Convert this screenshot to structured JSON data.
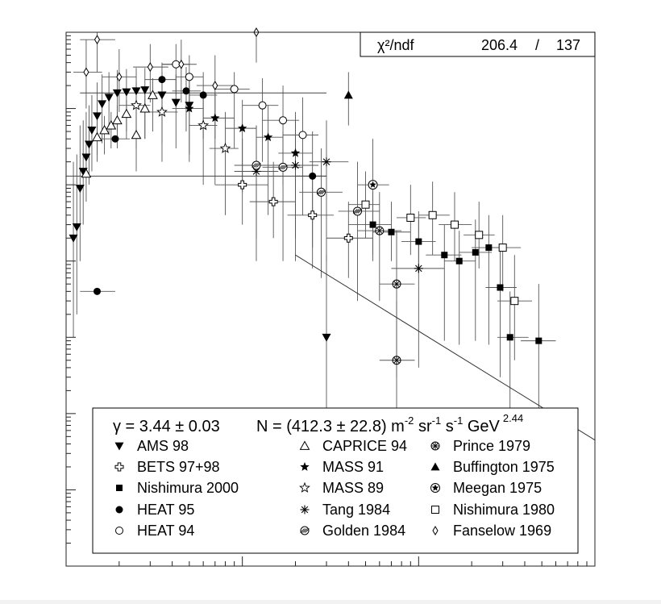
{
  "chart_data": {
    "type": "scatter",
    "x_scale": "log",
    "y_scale": "log",
    "x_range": [
      1,
      1000
    ],
    "y_range": [
      0.001,
      10000
    ],
    "tick_labels_visible": false,
    "stats_box": {
      "label": "χ²/ndf",
      "chi2": "206.4",
      "separator": "/",
      "ndf": "137"
    },
    "fit": {
      "gamma_text": "γ = 3.44 ± 0.03",
      "norm_text": "N = (412.3 ± 22.8) m",
      "norm_units": [
        "-2",
        " sr",
        "-1",
        " s",
        "-1",
        " GeV",
        "2.44"
      ],
      "gamma": 3.44,
      "gamma_err": 0.03,
      "N": 412.3,
      "N_err": 22.8
    },
    "legend": [
      {
        "name": "AMS 98",
        "marker": "triangle-down-filled"
      },
      {
        "name": "BETS 97+98",
        "marker": "open-cross"
      },
      {
        "name": "Nishimura 2000",
        "marker": "square-filled"
      },
      {
        "name": "HEAT 95",
        "marker": "circle-filled"
      },
      {
        "name": "HEAT 94",
        "marker": "circle-open"
      },
      {
        "name": "CAPRICE 94",
        "marker": "triangle-up-open"
      },
      {
        "name": "MASS 91",
        "marker": "star-filled"
      },
      {
        "name": "MASS 89",
        "marker": "star-open"
      },
      {
        "name": "Tang 1984",
        "marker": "asterisk"
      },
      {
        "name": "Golden 1984",
        "marker": "circle-hatched"
      },
      {
        "name": "Prince 1979",
        "marker": "circle-cross"
      },
      {
        "name": "Buffington 1975",
        "marker": "triangle-up-filled"
      },
      {
        "name": "Meegan 1975",
        "marker": "circle-star"
      },
      {
        "name": "Nishimura 1980",
        "marker": "square-open"
      },
      {
        "name": "Fanselow 1969",
        "marker": "diamond-open"
      }
    ],
    "series": [
      {
        "name": "AMS 98",
        "marker": "triangle-down-filled",
        "points": [
          {
            "x": 1.1,
            "y": 20,
            "xlo": 1.1,
            "xhi": 1.1,
            "ylo": 1,
            "yhi": 200
          },
          {
            "x": 1.15,
            "y": 28,
            "xlo": 1.15,
            "xhi": 1.15,
            "ylo": 2,
            "yhi": 250
          },
          {
            "x": 1.2,
            "y": 90,
            "xlo": 1.2,
            "xhi": 1.2,
            "ylo": 10,
            "yhi": 600
          },
          {
            "x": 1.25,
            "y": 150,
            "xlo": 1.25,
            "xhi": 1.25,
            "ylo": 30,
            "yhi": 700
          },
          {
            "x": 1.3,
            "y": 230,
            "xlo": 1.3,
            "xhi": 1.3,
            "ylo": 60,
            "yhi": 900
          },
          {
            "x": 1.35,
            "y": 340,
            "xlo": 1.35,
            "xhi": 1.35,
            "ylo": 100,
            "yhi": 1100
          },
          {
            "x": 1.4,
            "y": 520,
            "xlo": 1.4,
            "xhi": 1.4,
            "ylo": 150,
            "yhi": 1500
          },
          {
            "x": 1.5,
            "y": 800,
            "xlo": 1.5,
            "xhi": 1.5,
            "ylo": 250,
            "yhi": 2200
          },
          {
            "x": 1.6,
            "y": 1150,
            "xlo": 1.6,
            "xhi": 1.6,
            "ylo": 350,
            "yhi": 2800
          },
          {
            "x": 1.75,
            "y": 1400,
            "xlo": 1.75,
            "xhi": 1.75,
            "ylo": 450,
            "yhi": 3000
          },
          {
            "x": 1.95,
            "y": 1600,
            "xlo": 1.95,
            "xhi": 1.95,
            "ylo": 500,
            "yhi": 3200
          },
          {
            "x": 2.2,
            "y": 1650,
            "xlo": 2.2,
            "xhi": 2.2,
            "ylo": 500,
            "yhi": 3300
          },
          {
            "x": 2.5,
            "y": 1700,
            "xlo": 2.5,
            "xhi": 2.5,
            "ylo": 500,
            "yhi": 3400
          },
          {
            "x": 2.8,
            "y": 1750,
            "xlo": 2.8,
            "xhi": 2.8,
            "ylo": 400,
            "yhi": 3400
          },
          {
            "x": 3.5,
            "y": 1500,
            "xlo": 3.5,
            "xhi": 3.5,
            "ylo": 350,
            "yhi": 3000
          },
          {
            "x": 4.2,
            "y": 1200,
            "xlo": 4.2,
            "xhi": 4.2,
            "ylo": 300,
            "yhi": 2800
          },
          {
            "x": 5,
            "y": 1100,
            "xlo": 5,
            "xhi": 5,
            "ylo": 250,
            "yhi": 2500
          },
          {
            "x": 30,
            "y": 1,
            "xlo": 30,
            "xhi": 30,
            "ylo": 0.02,
            "yhi": 12
          }
        ]
      },
      {
        "name": "BETS 97+98",
        "marker": "open-cross",
        "points": [
          {
            "x": 10,
            "y": 100,
            "xlo": 7,
            "xhi": 14,
            "ylo": 30,
            "yhi": 400
          },
          {
            "x": 15,
            "y": 60,
            "xlo": 11,
            "xhi": 20,
            "ylo": 20,
            "yhi": 200
          },
          {
            "x": 25,
            "y": 40,
            "xlo": 18,
            "xhi": 33,
            "ylo": 15,
            "yhi": 120
          },
          {
            "x": 40,
            "y": 20,
            "xlo": 30,
            "xhi": 55,
            "ylo": 6,
            "yhi": 60
          }
        ]
      },
      {
        "name": "Nishimura 2000",
        "marker": "square-filled",
        "points": [
          {
            "x": 55,
            "y": 30,
            "xlo": 40,
            "xhi": 70,
            "ylo": 12,
            "yhi": 80
          },
          {
            "x": 70,
            "y": 24,
            "xlo": 55,
            "xhi": 90,
            "ylo": 10,
            "yhi": 60
          },
          {
            "x": 100,
            "y": 18,
            "xlo": 80,
            "xhi": 125,
            "ylo": 7,
            "yhi": 45
          },
          {
            "x": 140,
            "y": 12,
            "xlo": 110,
            "xhi": 175,
            "ylo": 0.9,
            "yhi": 30
          },
          {
            "x": 170,
            "y": 10,
            "xlo": 140,
            "xhi": 210,
            "ylo": 0.8,
            "yhi": 25
          },
          {
            "x": 210,
            "y": 13,
            "xlo": 170,
            "xhi": 260,
            "ylo": 0.9,
            "yhi": 35
          },
          {
            "x": 250,
            "y": 15,
            "xlo": 200,
            "xhi": 310,
            "ylo": 0.8,
            "yhi": 40
          },
          {
            "x": 290,
            "y": 4.5,
            "xlo": 240,
            "xhi": 360,
            "ylo": 0.3,
            "yhi": 15
          },
          {
            "x": 330,
            "y": 1,
            "xlo": 280,
            "xhi": 420,
            "ylo": 0.05,
            "yhi": 4
          },
          {
            "x": 480,
            "y": 0.9,
            "xlo": 380,
            "xhi": 600,
            "ylo": 0.01,
            "yhi": 5
          }
        ]
      },
      {
        "name": "HEAT 95",
        "marker": "circle-filled",
        "points": [
          {
            "x": 1.5,
            "y": 4,
            "xlo": 1.2,
            "xhi": 1.9,
            "ylo": 4,
            "yhi": 4
          },
          {
            "x": 1.9,
            "y": 400,
            "xlo": 1.5,
            "xhi": 2.3,
            "ylo": 400,
            "yhi": 400
          },
          {
            "x": 3.5,
            "y": 2400,
            "xlo": 2.8,
            "xhi": 4.2,
            "ylo": 800,
            "yhi": 4000
          },
          {
            "x": 4.8,
            "y": 1700,
            "xlo": 4,
            "xhi": 5.8,
            "ylo": 500,
            "yhi": 3500
          },
          {
            "x": 6,
            "y": 1500,
            "xlo": 5,
            "xhi": 7.2,
            "ylo": 400,
            "yhi": 3000
          },
          {
            "x": 25,
            "y": 130,
            "xlo": 20,
            "xhi": 30,
            "ylo": 8,
            "yhi": 500
          }
        ]
      },
      {
        "name": "HEAT 94",
        "marker": "circle-open",
        "points": [
          {
            "x": 4.2,
            "y": 3800,
            "xlo": 3.5,
            "xhi": 5,
            "ylo": 1500,
            "yhi": 7000
          },
          {
            "x": 5,
            "y": 2600,
            "xlo": 4.2,
            "xhi": 6,
            "ylo": 900,
            "yhi": 5000
          },
          {
            "x": 9,
            "y": 1800,
            "xlo": 7,
            "xhi": 11,
            "ylo": 300,
            "yhi": 3000
          },
          {
            "x": 13,
            "y": 1100,
            "xlo": 10,
            "xhi": 16,
            "ylo": 200,
            "yhi": 2500
          },
          {
            "x": 17,
            "y": 700,
            "xlo": 13,
            "xhi": 21,
            "ylo": 100,
            "yhi": 2000
          },
          {
            "x": 22,
            "y": 450,
            "xlo": 17,
            "xhi": 27,
            "ylo": 40,
            "yhi": 1400
          }
        ]
      },
      {
        "name": "CAPRICE 94",
        "marker": "triangle-up-open",
        "points": [
          {
            "x": 1.3,
            "y": 140,
            "xlo": 1.3,
            "xhi": 1.3,
            "ylo": 140,
            "yhi": 140
          },
          {
            "x": 1.5,
            "y": 420,
            "xlo": 1.5,
            "xhi": 1.5,
            "ylo": 200,
            "yhi": 700
          },
          {
            "x": 1.65,
            "y": 520,
            "xlo": 1.65,
            "xhi": 1.65,
            "ylo": 250,
            "yhi": 800
          },
          {
            "x": 1.8,
            "y": 600,
            "xlo": 1.8,
            "xhi": 1.8,
            "ylo": 300,
            "yhi": 900
          },
          {
            "x": 1.95,
            "y": 700,
            "xlo": 1.95,
            "xhi": 1.95,
            "ylo": 300,
            "yhi": 1100
          },
          {
            "x": 2.2,
            "y": 850,
            "xlo": 2.2,
            "xhi": 2.2,
            "ylo": 400,
            "yhi": 1300
          },
          {
            "x": 2.5,
            "y": 450,
            "xlo": 2.5,
            "xhi": 2.5,
            "ylo": 150,
            "yhi": 900
          },
          {
            "x": 2.8,
            "y": 1000,
            "xlo": 2.8,
            "xhi": 2.8,
            "ylo": 400,
            "yhi": 1700
          },
          {
            "x": 3.1,
            "y": 1500,
            "xlo": 3.1,
            "xhi": 3.1,
            "ylo": 500,
            "yhi": 2500
          }
        ]
      },
      {
        "name": "MASS 91",
        "marker": "star-filled",
        "points": [
          {
            "x": 5,
            "y": 1000,
            "xlo": 4,
            "xhi": 6,
            "ylo": 200,
            "yhi": 2000
          },
          {
            "x": 7,
            "y": 750,
            "xlo": 6,
            "xhi": 9,
            "ylo": 100,
            "yhi": 1600
          },
          {
            "x": 10,
            "y": 550,
            "xlo": 8,
            "xhi": 12,
            "ylo": 80,
            "yhi": 1300
          },
          {
            "x": 14,
            "y": 420,
            "xlo": 12,
            "xhi": 17,
            "ylo": 40,
            "yhi": 1100
          },
          {
            "x": 20,
            "y": 260,
            "xlo": 16,
            "xhi": 25,
            "ylo": 20,
            "yhi": 900
          }
        ]
      },
      {
        "name": "MASS 89",
        "marker": "star-open",
        "points": [
          {
            "x": 2.5,
            "y": 1100,
            "xlo": 2,
            "xhi": 3,
            "ylo": 300,
            "yhi": 2200
          },
          {
            "x": 3.5,
            "y": 900,
            "xlo": 2.8,
            "xhi": 4.3,
            "ylo": 200,
            "yhi": 2000
          },
          {
            "x": 6,
            "y": 600,
            "xlo": 5,
            "xhi": 7.2,
            "ylo": 100,
            "yhi": 1500
          },
          {
            "x": 8,
            "y": 300,
            "xlo": 6.5,
            "xhi": 9.5,
            "ylo": 40,
            "yhi": 900
          }
        ]
      },
      {
        "name": "Tang 1984",
        "marker": "asterisk",
        "points": [
          {
            "x": 12,
            "y": 150,
            "xlo": 9,
            "xhi": 16,
            "ylo": 10,
            "yhi": 600
          },
          {
            "x": 20,
            "y": 180,
            "xlo": 15,
            "xhi": 27,
            "ylo": 10,
            "yhi": 700
          },
          {
            "x": 30,
            "y": 200,
            "xlo": 24,
            "xhi": 40,
            "ylo": 10,
            "yhi": 700
          },
          {
            "x": 100,
            "y": 8,
            "xlo": 70,
            "xhi": 140,
            "ylo": 0.4,
            "yhi": 35
          }
        ]
      },
      {
        "name": "Golden 1984",
        "marker": "circle-hatched",
        "points": [
          {
            "x": 12,
            "y": 180,
            "xlo": 9,
            "xhi": 16,
            "ylo": 20,
            "yhi": 600
          },
          {
            "x": 17,
            "y": 170,
            "xlo": 13,
            "xhi": 22,
            "ylo": 10,
            "yhi": 500
          },
          {
            "x": 28,
            "y": 80,
            "xlo": 21,
            "xhi": 37,
            "ylo": 6,
            "yhi": 300
          },
          {
            "x": 45,
            "y": 45,
            "xlo": 35,
            "xhi": 60,
            "ylo": 3,
            "yhi": 200
          }
        ]
      },
      {
        "name": "Prince 1979",
        "marker": "circle-cross",
        "points": [
          {
            "x": 75,
            "y": 5,
            "xlo": 60,
            "xhi": 95,
            "ylo": 0.3,
            "yhi": 25
          },
          {
            "x": 75,
            "y": 0.5,
            "xlo": 60,
            "xhi": 95,
            "ylo": 0.02,
            "yhi": 3
          },
          {
            "x": 60,
            "y": 25,
            "xlo": 45,
            "xhi": 80,
            "ylo": 3,
            "yhi": 80
          }
        ]
      },
      {
        "name": "Buffington 1975",
        "marker": "triangle-up-filled",
        "points": [
          {
            "x": 40,
            "y": 1500,
            "xlo": 40,
            "xhi": 40,
            "ylo": 600,
            "yhi": 3000
          }
        ]
      },
      {
        "name": "Meegan 1975",
        "marker": "circle-star",
        "points": [
          {
            "x": 55,
            "y": 100,
            "xlo": 45,
            "xhi": 68,
            "ylo": 10,
            "yhi": 400
          }
        ]
      },
      {
        "name": "Nishimura 1980",
        "marker": "square-open",
        "points": [
          {
            "x": 50,
            "y": 55,
            "xlo": 40,
            "xhi": 60,
            "ylo": 20,
            "yhi": 150
          },
          {
            "x": 90,
            "y": 37,
            "xlo": 75,
            "xhi": 110,
            "ylo": 12,
            "yhi": 100
          },
          {
            "x": 120,
            "y": 40,
            "xlo": 100,
            "xhi": 150,
            "ylo": 12,
            "yhi": 110
          },
          {
            "x": 160,
            "y": 30,
            "xlo": 130,
            "xhi": 200,
            "ylo": 10,
            "yhi": 80
          },
          {
            "x": 220,
            "y": 22,
            "xlo": 180,
            "xhi": 270,
            "ylo": 8,
            "yhi": 60
          },
          {
            "x": 300,
            "y": 15,
            "xlo": 240,
            "xhi": 380,
            "ylo": 4,
            "yhi": 40
          },
          {
            "x": 350,
            "y": 3,
            "xlo": 280,
            "xhi": 440,
            "ylo": 0.5,
            "yhi": 12
          }
        ]
      },
      {
        "name": "Fanselow 1969",
        "marker": "diamond-open",
        "points": [
          {
            "x": 1.5,
            "y": 8000,
            "xlo": 1.2,
            "xhi": 1.9,
            "ylo": 3000,
            "yhi": 15000
          },
          {
            "x": 1.3,
            "y": 3000,
            "xlo": 1.1,
            "xhi": 1.6,
            "ylo": 1000,
            "yhi": 8000
          },
          {
            "x": 2,
            "y": 2600,
            "xlo": 1.6,
            "xhi": 2.5,
            "ylo": 900,
            "yhi": 6000
          },
          {
            "x": 3,
            "y": 3500,
            "xlo": 2.4,
            "xhi": 3.8,
            "ylo": 1200,
            "yhi": 7000
          },
          {
            "x": 4.5,
            "y": 3800,
            "xlo": 3.5,
            "xhi": 5.5,
            "ylo": 1200,
            "yhi": 8000
          },
          {
            "x": 7,
            "y": 2000,
            "xlo": 5.5,
            "xhi": 9,
            "ylo": 400,
            "yhi": 5000
          },
          {
            "x": 12,
            "y": 10000,
            "xlo": 9.5,
            "xhi": 15,
            "ylo": 4000,
            "yhi": 25000
          }
        ]
      }
    ],
    "fit_line": {
      "x": [
        20,
        1000
      ],
      "y": [
        12,
        0.045
      ]
    },
    "bands": [
      {
        "y": 130,
        "x": [
          1,
          30
        ]
      },
      {
        "y": 1600,
        "x": [
          1.2,
          30
        ]
      }
    ]
  }
}
